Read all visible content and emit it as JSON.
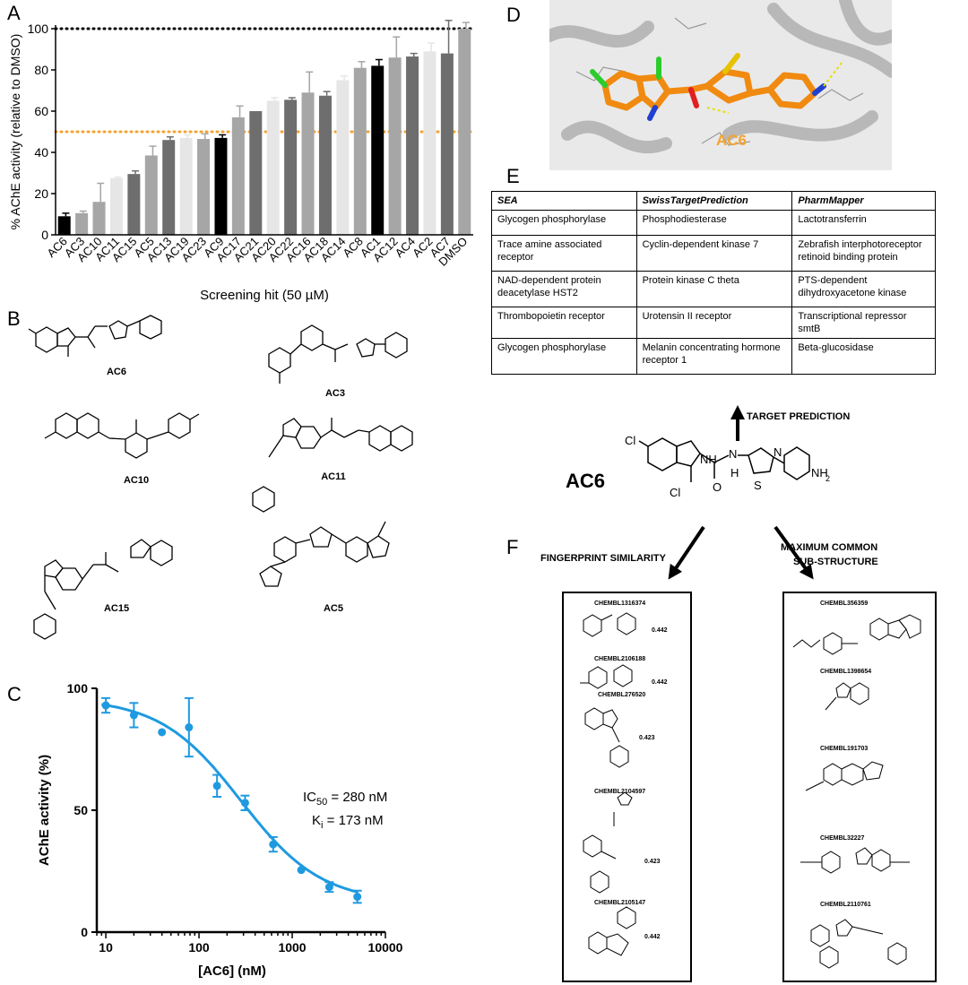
{
  "panel_letters": {
    "a": "A",
    "b": "B",
    "c": "C",
    "d": "D",
    "e": "E",
    "f": "F"
  },
  "colors": {
    "orange": "#f4a230",
    "blue": "#1f9ae0",
    "black": "#000000"
  },
  "chart_data": [
    {
      "type": "bar",
      "panel": "A",
      "categories": [
        "AC6",
        "AC3",
        "AC10",
        "AC11",
        "AC15",
        "AC5",
        "AC13",
        "AC19",
        "AC23",
        "AC9",
        "AC17",
        "AC21",
        "AC20",
        "AC22",
        "AC16",
        "AC18",
        "AC14",
        "AC8",
        "AC1",
        "AC12",
        "AC4",
        "AC2",
        "AC7",
        "DMSO"
      ],
      "values": [
        9,
        10.5,
        16,
        27.5,
        29.5,
        38.5,
        46,
        47,
        46.5,
        47,
        57,
        60,
        65,
        65.5,
        69,
        67.5,
        75,
        81,
        82,
        86,
        86.5,
        89,
        88,
        100
      ],
      "errors": [
        1.5,
        1,
        9,
        0.5,
        1.5,
        4.5,
        1.5,
        1.5,
        2.5,
        1.5,
        5.5,
        0,
        1.5,
        1,
        10,
        2,
        2,
        3,
        3,
        10,
        1.5,
        4,
        16,
        3
      ],
      "bar_colors": [
        "#000000",
        "#a6a6a6",
        "#a6a6a6",
        "#e6e6e6",
        "#6e6e6e",
        "#a6a6a6",
        "#6e6e6e",
        "#e6e6e6",
        "#a6a6a6",
        "#000000",
        "#a6a6a6",
        "#6e6e6e",
        "#e6e6e6",
        "#6e6e6e",
        "#a6a6a6",
        "#6e6e6e",
        "#e6e6e6",
        "#a6a6a6",
        "#000000",
        "#a6a6a6",
        "#6e6e6e",
        "#e6e6e6",
        "#6e6e6e",
        "#a6a6a6"
      ],
      "reference_lines": [
        {
          "y": 100,
          "color": "#000000",
          "style": "dotted"
        },
        {
          "y": 50,
          "color": "#f4a230",
          "style": "dotted"
        }
      ],
      "xlabel": "Screening hit (50 µM)",
      "ylabel": "% AChE activity (relative to DMSO)",
      "yticks": [
        0,
        20,
        40,
        60,
        80,
        100
      ],
      "ylim": [
        0,
        100
      ]
    },
    {
      "type": "scatter",
      "panel": "C",
      "x": [
        10,
        20,
        40,
        78,
        156,
        312,
        625,
        1250,
        2500,
        5000
      ],
      "y": [
        93,
        89,
        82,
        84,
        60,
        53,
        36,
        25.5,
        18.5,
        14.5
      ],
      "errors": [
        3,
        5,
        0,
        12,
        4.5,
        3,
        3,
        0,
        2,
        2.5
      ],
      "fit": {
        "model": "sigmoid",
        "top": 96,
        "bottom": 12,
        "ic50": 280,
        "hill": 1
      },
      "color": "#1f9ae0",
      "xscale": "log",
      "xlim": [
        8,
        10000
      ],
      "ylim": [
        0,
        100
      ],
      "xticks": [
        "10",
        "100",
        "1000",
        "10000"
      ],
      "yticks": [
        "0",
        "50",
        "100"
      ],
      "xlabel": "[AC6] (nM)",
      "ylabel": "AChE activity (%)",
      "annotation": {
        "ic50_label": "IC",
        "ic50_sub": "50",
        "ic50_value": " = 280 nM",
        "ki_label": "K",
        "ki_sub": "i",
        "ki_value": " = 173 nM"
      }
    }
  ],
  "structures_b": [
    {
      "label": "AC6"
    },
    {
      "label": "AC3"
    },
    {
      "label": "AC10"
    },
    {
      "label": "AC11"
    },
    {
      "label": "AC15"
    },
    {
      "label": "AC5"
    }
  ],
  "panel_d": {
    "ligand_label": "AC6"
  },
  "table_e": {
    "headers": [
      "SEA",
      "SwissTargetPrediction",
      "PharmMapper"
    ],
    "rows": [
      [
        "Glycogen phosphorylase",
        "Phosphodiesterase",
        "Lactotransferrin"
      ],
      [
        "Trace amine associated receptor",
        "Cyclin-dependent kinase 7",
        "Zebrafish interphotoreceptor retinoid binding protein"
      ],
      [
        "NAD-dependent protein deacetylase HST2",
        "Protein kinase C theta",
        "PTS-dependent dihydroxyacetone kinase"
      ],
      [
        "Thrombopoietin receptor",
        "Urotensin II receptor",
        "Transcriptional repressor smtB"
      ],
      [
        "Glycogen phosphorylase",
        "Melanin concentrating hormone receptor 1",
        "Beta-glucosidase"
      ]
    ]
  },
  "center": {
    "molecule_label": "AC6",
    "target_prediction": "TARGET PREDICTION",
    "fingerprint": "FINGERPRINT SIMILARITY",
    "mcs_line1": "MAXIMUM COMMON",
    "mcs_line2": "SUB-STRUCTURE"
  },
  "fingerprint_hits": [
    {
      "id": "CHEMBL1316374",
      "score": "0.442"
    },
    {
      "id": "CHEMBL2106188",
      "score": "0.442"
    },
    {
      "id": "CHEMBL276520",
      "score": "0.423"
    },
    {
      "id": "CHEMBL2104597",
      "score": "0.423"
    },
    {
      "id": "CHEMBL2105147",
      "score": "0.442"
    }
  ],
  "mcs_hits": [
    {
      "id": "CHEMBL356359"
    },
    {
      "id": "CHEMBL1398654"
    },
    {
      "id": "CHEMBL191703"
    },
    {
      "id": "CHEMBL32227"
    },
    {
      "id": "CHEMBL2110761"
    }
  ]
}
